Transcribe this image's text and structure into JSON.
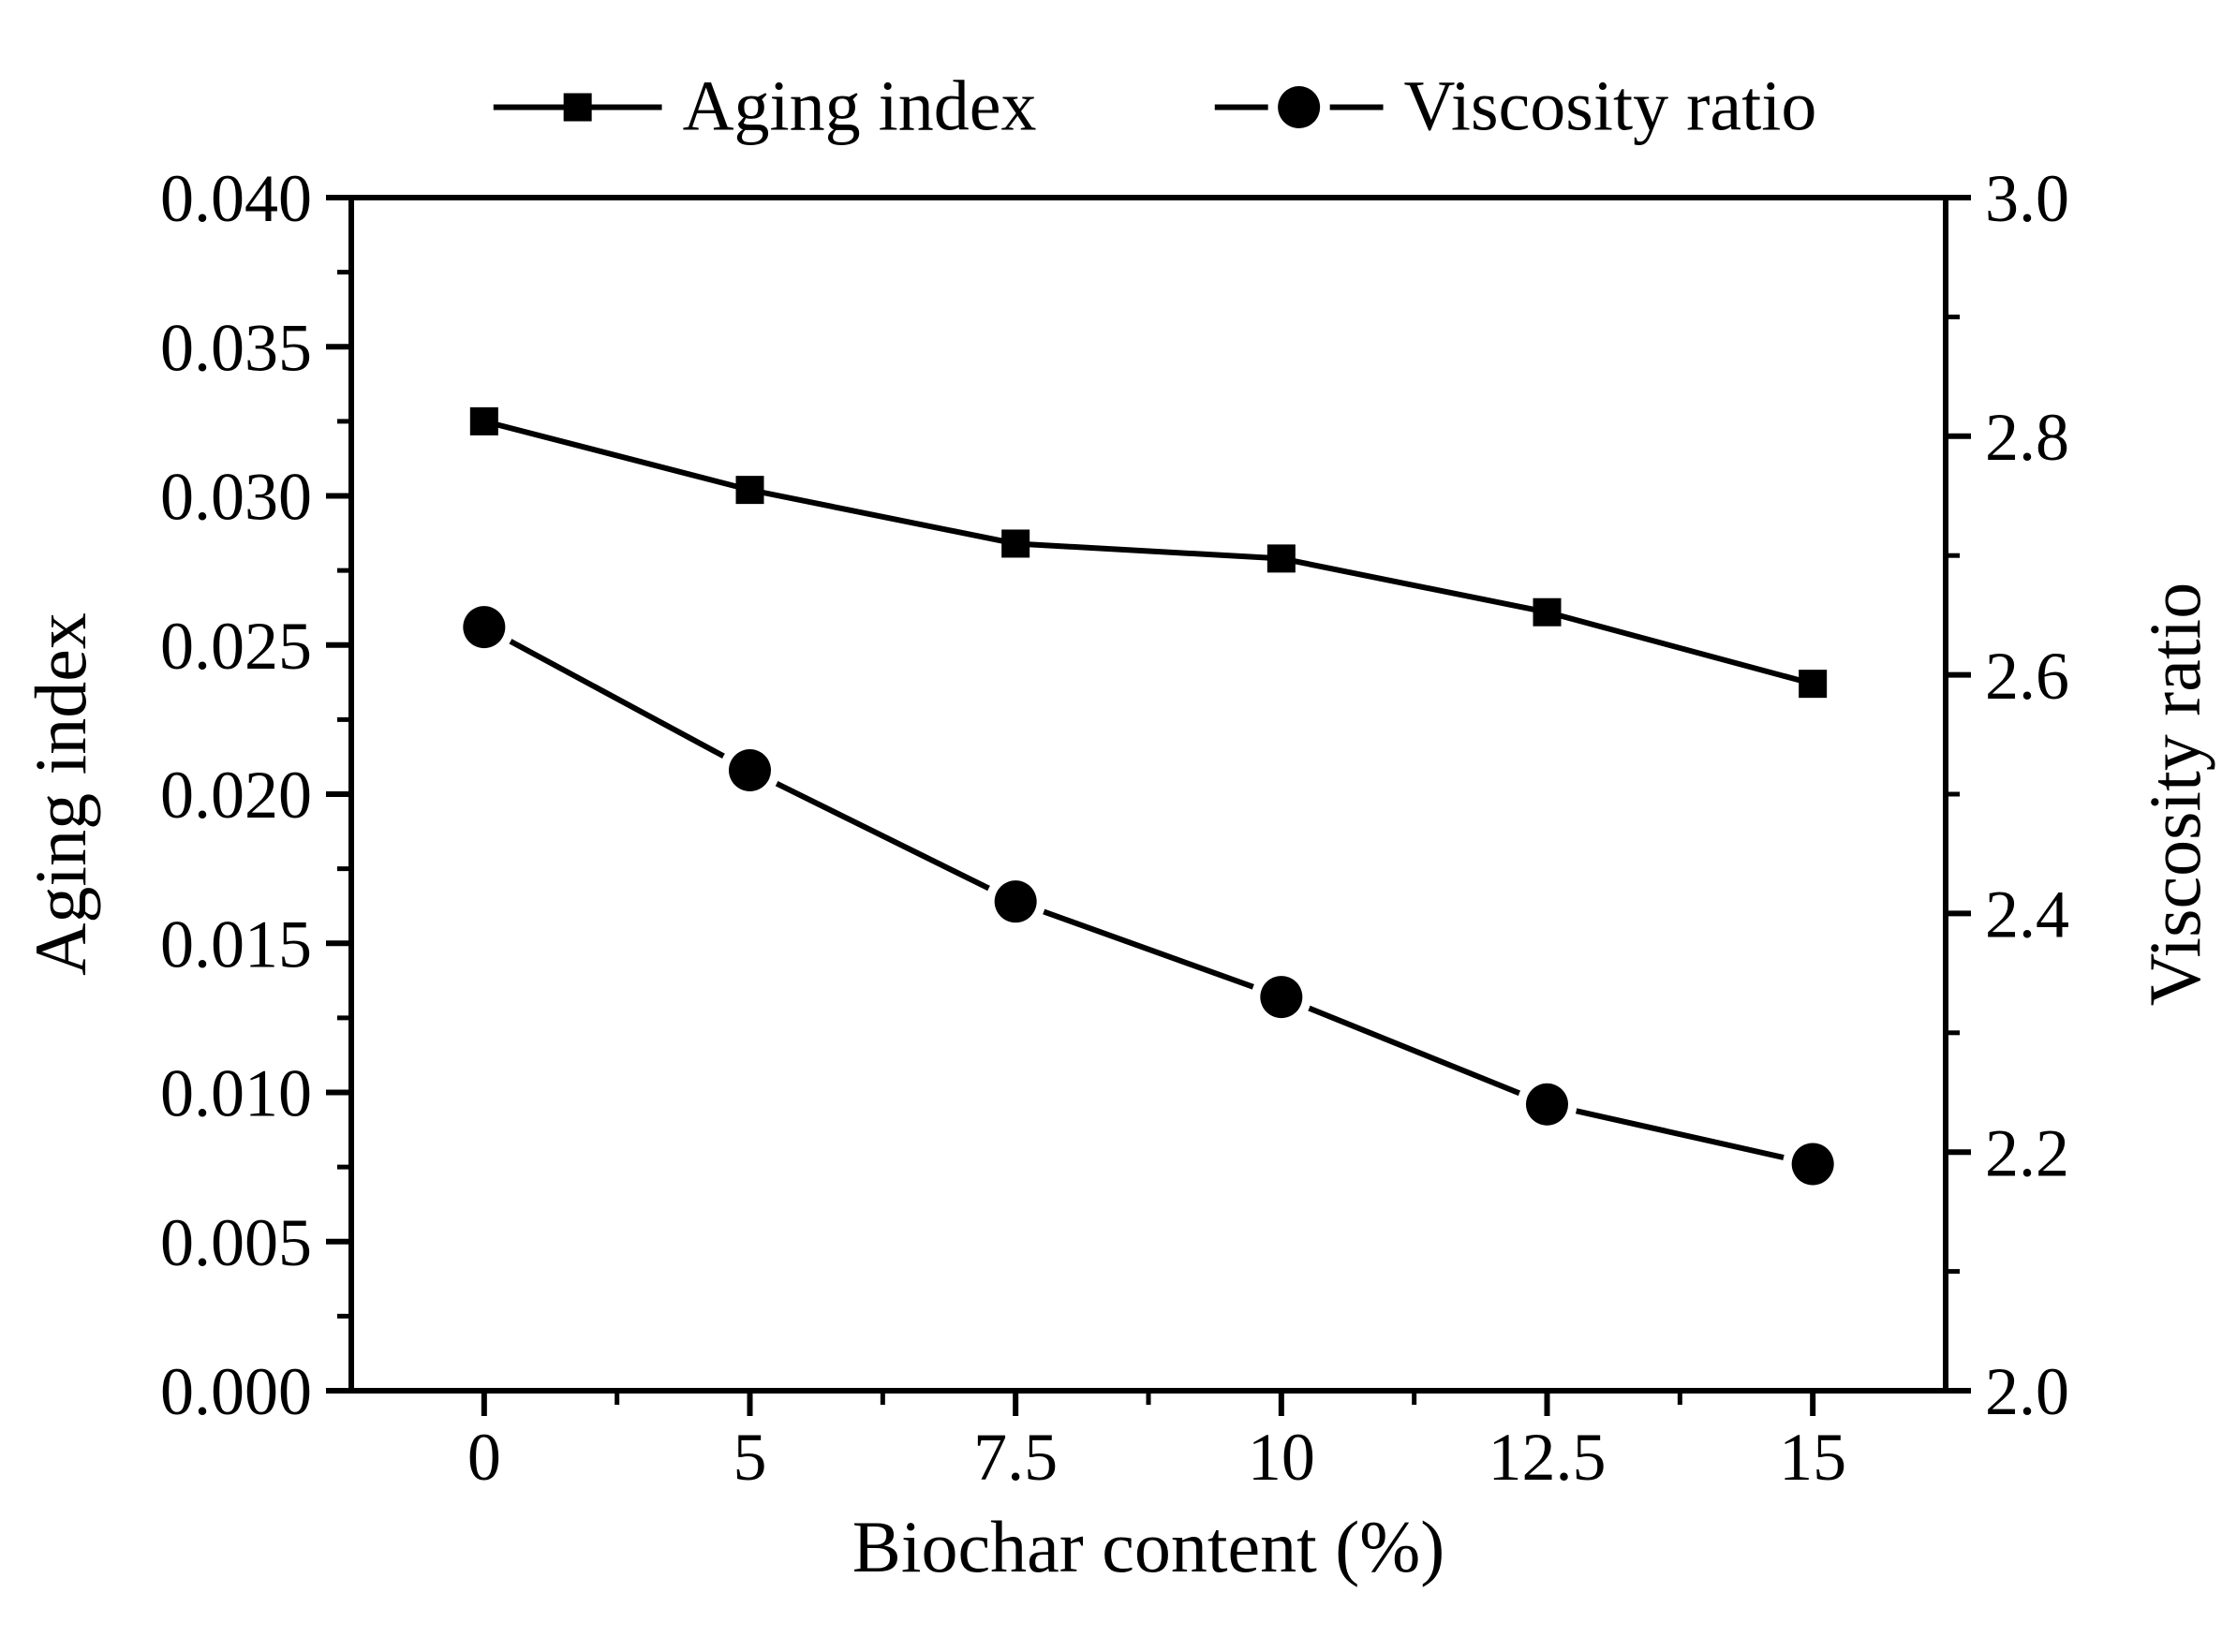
{
  "chart_data": {
    "type": "line",
    "categories": [
      "0",
      "5",
      "7.5",
      "10",
      "12.5",
      "15"
    ],
    "series": [
      {
        "name": "Aging index",
        "axis": "left",
        "marker": "square",
        "values": [
          0.0325,
          0.0302,
          0.0284,
          0.0279,
          0.0261,
          0.0237
        ]
      },
      {
        "name": "Viscosity ratio",
        "axis": "right",
        "marker": "circle",
        "values": [
          2.64,
          2.52,
          2.41,
          2.33,
          2.24,
          2.19
        ]
      }
    ],
    "xlabel": "Biochar content (%)",
    "ylabel_left": "Aging index",
    "ylabel_right": "Viscosity ratio",
    "left_axis": {
      "min": 0.0,
      "max": 0.04,
      "major_step": 0.005,
      "minor_step": 0.0025,
      "tick_labels": [
        "0.000",
        "0.005",
        "0.010",
        "0.015",
        "0.020",
        "0.025",
        "0.030",
        "0.035",
        "0.040"
      ]
    },
    "right_axis": {
      "min": 2.0,
      "max": 3.0,
      "major_step": 0.2,
      "minor_step": 0.1,
      "tick_labels": [
        "2.0",
        "2.2",
        "2.4",
        "2.6",
        "2.8",
        "3.0"
      ]
    },
    "legend": {
      "position": "top-center",
      "items": [
        "Aging index",
        "Viscosity ratio"
      ]
    },
    "grid": "off",
    "colors": {
      "line": "#000000",
      "background": "#ffffff"
    }
  }
}
